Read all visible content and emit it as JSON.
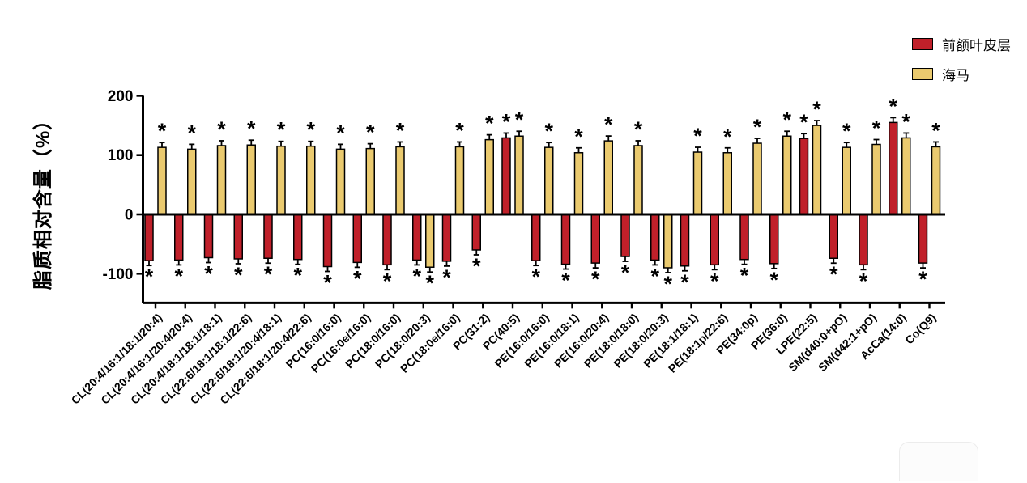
{
  "figure": {
    "background": "#ffffff",
    "significance_marker": "*",
    "axis_color": "#000000"
  },
  "legend": {
    "items": [
      {
        "label": "前额叶皮层",
        "color": "#C0202A"
      },
      {
        "label": "海马",
        "color": "#EACA6F"
      }
    ]
  },
  "chart_data": {
    "type": "bar",
    "title": "",
    "xlabel": "",
    "ylabel": "脂质相对含量（%）",
    "ylim": [
      -150,
      200
    ],
    "yticks": [
      200,
      100,
      0,
      -100
    ],
    "grid": false,
    "legend_position": "top-right",
    "bar_outline_color": "#000000",
    "error_bar_approx": 8,
    "all_bars_significant": "*",
    "categories": [
      "CL(20:4/16:1/18:1/20:4)",
      "CL(20:4/16:1/20:4/20:4)",
      "CL(20:4/18:1/18:1/18:1)",
      "CL(22:6/18:1/18:1/22:6)",
      "CL(22:6/18:1/20:4/18:1)",
      "CL(22:6/18:1/20:4/22:6)",
      "PC(16:0/16:0)",
      "PC(16:0e/16:0)",
      "PC(18:0/16:0)",
      "PC(18:0/20:3)",
      "PC(18:0e/16:0)",
      "PC(31:2)",
      "PC(40:5)",
      "PE(16:0/16:0)",
      "PE(16:0/18:1)",
      "PE(16:0/20:4)",
      "PE(18:0/18:0)",
      "PE(18:0/20:3)",
      "PE(18:1/18:1)",
      "PE(18:1p/22:6)",
      "PE(34:0p)",
      "PE(36:0)",
      "LPE(22:5)",
      "SM(d40:0+pO)",
      "SM(d42:1+pO)",
      "AcCa(14:0)",
      "Co(Q9)"
    ],
    "series": [
      {
        "name": "前额叶皮层",
        "color": "#C0202A",
        "values": [
          -78,
          -77,
          -73,
          -75,
          -74,
          -76,
          -88,
          -81,
          -85,
          -77,
          -79,
          -60,
          129,
          -78,
          -84,
          -82,
          -71,
          -77,
          -87,
          -85,
          -76,
          -83,
          128,
          -74,
          -85,
          155,
          -82
        ]
      },
      {
        "name": "海马",
        "color": "#EACA6F",
        "values": [
          113,
          110,
          116,
          117,
          115,
          115,
          110,
          111,
          114,
          -89,
          114,
          126,
          132,
          113,
          104,
          124,
          116,
          -90,
          105,
          104,
          120,
          132,
          150,
          113,
          118,
          129,
          114
        ]
      }
    ]
  }
}
